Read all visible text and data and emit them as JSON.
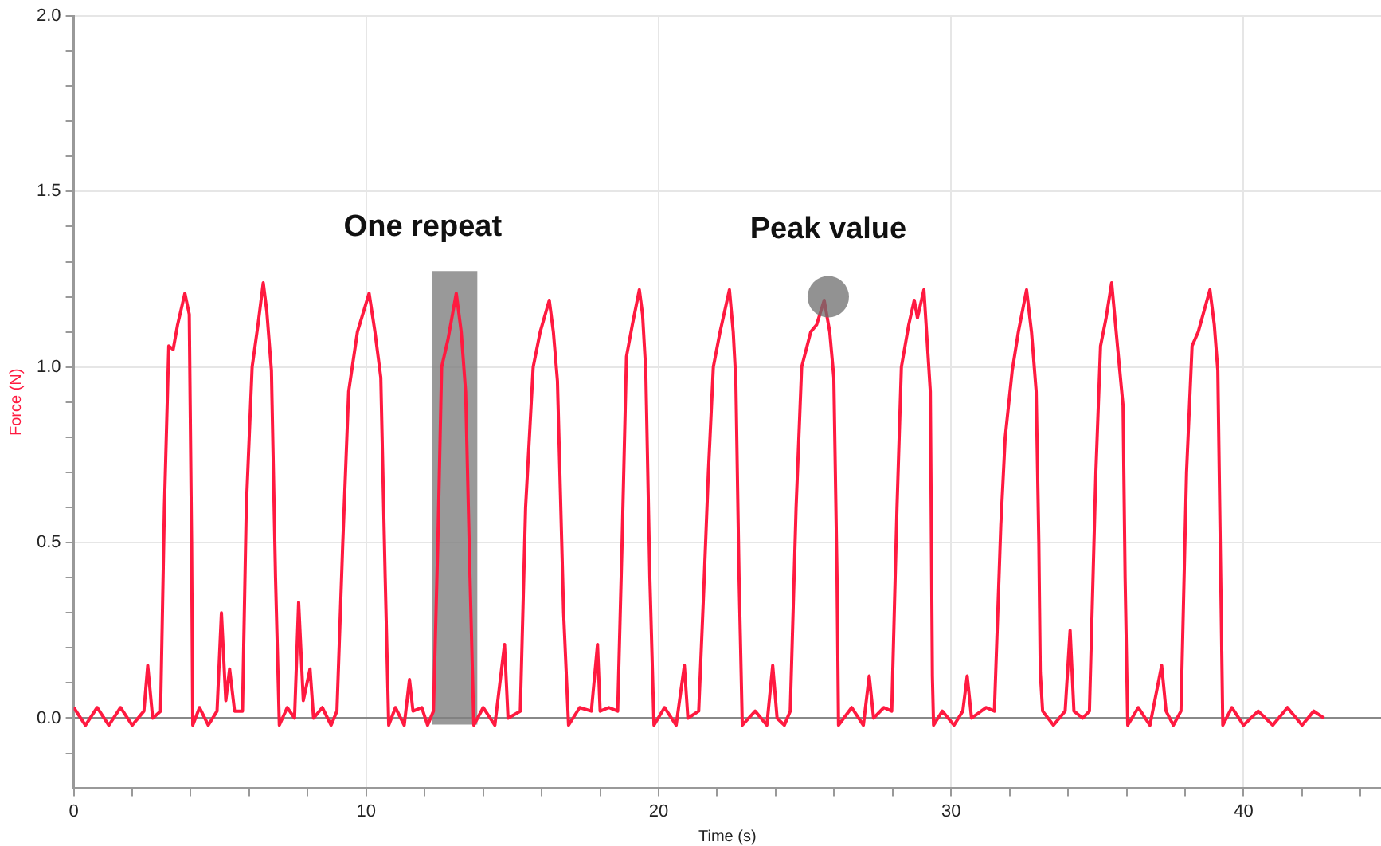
{
  "chart_data": {
    "type": "line",
    "xlabel": "Time (s)",
    "ylabel": "Force (N)",
    "grid": true,
    "legend": false,
    "marker": "none",
    "line_style": "solid",
    "xlim": [
      0,
      44.7
    ],
    "ylim": [
      -0.2,
      2.0
    ],
    "xticks": [
      0,
      {
        "value": 2,
        "label": null
      },
      {
        "value": 4,
        "label": null
      },
      {
        "value": 6,
        "label": null
      },
      {
        "value": 8,
        "label": null
      },
      10,
      {
        "value": 12,
        "label": null
      },
      {
        "value": 14,
        "label": null
      },
      {
        "value": 16,
        "label": null
      },
      {
        "value": 18,
        "label": null
      },
      20,
      {
        "value": 22,
        "label": null
      },
      {
        "value": 24,
        "label": null
      },
      {
        "value": 26,
        "label": null
      },
      {
        "value": 28,
        "label": null
      },
      30,
      {
        "value": 32,
        "label": null
      },
      {
        "value": 34,
        "label": null
      },
      {
        "value": 36,
        "label": null
      },
      {
        "value": 38,
        "label": null
      },
      40,
      {
        "value": 42,
        "label": null
      },
      {
        "value": 44,
        "label": null
      }
    ],
    "yticks": [
      {
        "value": -0.1,
        "label": null
      },
      {
        "value": 0,
        "label": "0.0"
      },
      {
        "value": 0.1,
        "label": null
      },
      {
        "value": 0.2,
        "label": null
      },
      {
        "value": 0.3,
        "label": null
      },
      {
        "value": 0.4,
        "label": null
      },
      {
        "value": 0.5,
        "label": "0.5"
      },
      {
        "value": 0.6,
        "label": null
      },
      {
        "value": 0.7,
        "label": null
      },
      {
        "value": 0.8,
        "label": null
      },
      {
        "value": 0.9,
        "label": null
      },
      {
        "value": 1.0,
        "label": "1.0"
      },
      {
        "value": 1.1,
        "label": null
      },
      {
        "value": 1.2,
        "label": null
      },
      {
        "value": 1.3,
        "label": null
      },
      {
        "value": 1.4,
        "label": null
      },
      {
        "value": 1.5,
        "label": "1.5"
      },
      {
        "value": 1.6,
        "label": null
      },
      {
        "value": 1.7,
        "label": null
      },
      {
        "value": 1.8,
        "label": null
      },
      {
        "value": 1.9,
        "label": null
      },
      {
        "value": 2.0,
        "label": "2.0"
      }
    ],
    "bands": [
      {
        "axis": "x",
        "from": 12.25,
        "to": 13.8,
        "label": "One repeat",
        "color": "#808080"
      }
    ],
    "annotations": [
      {
        "text": "Peak value",
        "x": 25.8,
        "y": 1.2
      }
    ],
    "series": [
      {
        "color": "#ff1a40",
        "x": [
          0,
          0.4,
          0.8,
          1.2,
          1.6,
          2.0,
          2.4,
          2.53,
          2.7,
          2.97,
          3.1,
          3.25,
          3.4,
          3.55,
          3.8,
          3.95,
          4.03,
          4.07,
          4.3,
          4.6,
          4.9,
          5.05,
          5.2,
          5.33,
          5.5,
          5.77,
          5.9,
          6.1,
          6.3,
          6.48,
          6.6,
          6.76,
          6.9,
          7.03,
          7.3,
          7.55,
          7.69,
          7.85,
          8.08,
          8.2,
          8.5,
          8.8,
          9.0,
          9.2,
          9.4,
          9.7,
          10.1,
          10.3,
          10.5,
          10.65,
          10.77,
          11.0,
          11.3,
          11.48,
          11.6,
          11.9,
          12.1,
          12.3,
          12.45,
          12.58,
          12.8,
          13.08,
          13.25,
          13.4,
          13.55,
          13.68,
          14.0,
          14.4,
          14.73,
          14.85,
          15.27,
          15.45,
          15.71,
          15.95,
          16.26,
          16.4,
          16.54,
          16.75,
          16.92,
          17.3,
          17.7,
          17.91,
          18.0,
          18.3,
          18.6,
          18.75,
          18.9,
          19.1,
          19.34,
          19.45,
          19.56,
          19.7,
          19.84,
          20.2,
          20.6,
          20.88,
          21.0,
          21.37,
          21.54,
          21.7,
          21.87,
          22.1,
          22.42,
          22.55,
          22.64,
          22.75,
          22.86,
          23.3,
          23.7,
          23.9,
          24.05,
          24.3,
          24.5,
          24.7,
          24.89,
          25.2,
          25.4,
          25.66,
          25.85,
          25.99,
          26.1,
          26.15,
          26.6,
          27.0,
          27.2,
          27.35,
          27.7,
          27.97,
          28.15,
          28.3,
          28.55,
          28.74,
          28.85,
          29.07,
          29.29,
          29.36,
          29.4,
          29.7,
          30.1,
          30.4,
          30.55,
          30.7,
          31.2,
          31.48,
          31.7,
          31.85,
          32.09,
          32.3,
          32.58,
          32.75,
          32.91,
          33.0,
          33.05,
          33.13,
          33.5,
          33.9,
          34.07,
          34.2,
          34.5,
          34.73,
          34.95,
          35.11,
          35.3,
          35.49,
          35.7,
          35.88,
          35.95,
          36.04,
          36.4,
          36.8,
          37.2,
          37.35,
          37.6,
          37.86,
          38.05,
          38.24,
          38.45,
          38.85,
          39.0,
          39.12,
          39.22,
          39.29,
          39.6,
          40.0,
          40.5,
          41.0,
          41.5,
          42.0,
          42.4,
          42.75
        ],
        "values": [
          0.03,
          -0.02,
          0.03,
          -0.02,
          0.03,
          -0.02,
          0.02,
          0.15,
          0.0,
          0.02,
          0.6,
          1.06,
          1.05,
          1.12,
          1.21,
          1.15,
          0.5,
          -0.02,
          0.03,
          -0.02,
          0.02,
          0.3,
          0.05,
          0.14,
          0.02,
          0.02,
          0.6,
          1.0,
          1.12,
          1.24,
          1.16,
          0.99,
          0.4,
          -0.02,
          0.03,
          0.0,
          0.33,
          0.05,
          0.14,
          0.0,
          0.03,
          -0.02,
          0.02,
          0.5,
          0.93,
          1.1,
          1.21,
          1.1,
          0.97,
          0.4,
          -0.02,
          0.03,
          -0.02,
          0.11,
          0.02,
          0.03,
          -0.02,
          0.02,
          0.5,
          1.0,
          1.08,
          1.21,
          1.1,
          0.93,
          0.4,
          -0.02,
          0.03,
          -0.02,
          0.21,
          0.0,
          0.02,
          0.6,
          1.0,
          1.1,
          1.19,
          1.1,
          0.96,
          0.3,
          -0.02,
          0.03,
          0.02,
          0.21,
          0.02,
          0.03,
          0.02,
          0.5,
          1.03,
          1.12,
          1.22,
          1.15,
          0.99,
          0.4,
          -0.02,
          0.03,
          -0.02,
          0.15,
          0.0,
          0.02,
          0.36,
          0.7,
          1.0,
          1.1,
          1.22,
          1.1,
          0.96,
          0.4,
          -0.02,
          0.02,
          -0.02,
          0.15,
          0.0,
          -0.02,
          0.02,
          0.6,
          1.0,
          1.1,
          1.12,
          1.19,
          1.1,
          0.97,
          0.4,
          -0.02,
          0.03,
          -0.02,
          0.12,
          0.0,
          0.03,
          0.02,
          0.6,
          1.0,
          1.12,
          1.19,
          1.14,
          1.22,
          0.93,
          0.12,
          -0.02,
          0.02,
          -0.02,
          0.02,
          0.12,
          0.0,
          0.03,
          0.02,
          0.55,
          0.8,
          0.99,
          1.1,
          1.22,
          1.1,
          0.93,
          0.5,
          0.13,
          0.02,
          -0.02,
          0.02,
          0.25,
          0.02,
          0.0,
          0.02,
          0.7,
          1.06,
          1.14,
          1.24,
          1.05,
          0.89,
          0.4,
          -0.02,
          0.03,
          -0.02,
          0.15,
          0.02,
          -0.02,
          0.02,
          0.7,
          1.06,
          1.1,
          1.22,
          1.12,
          0.99,
          0.4,
          -0.02,
          0.03,
          -0.02,
          0.02,
          -0.02,
          0.03,
          -0.02,
          0.02,
          0.0
        ]
      }
    ]
  }
}
